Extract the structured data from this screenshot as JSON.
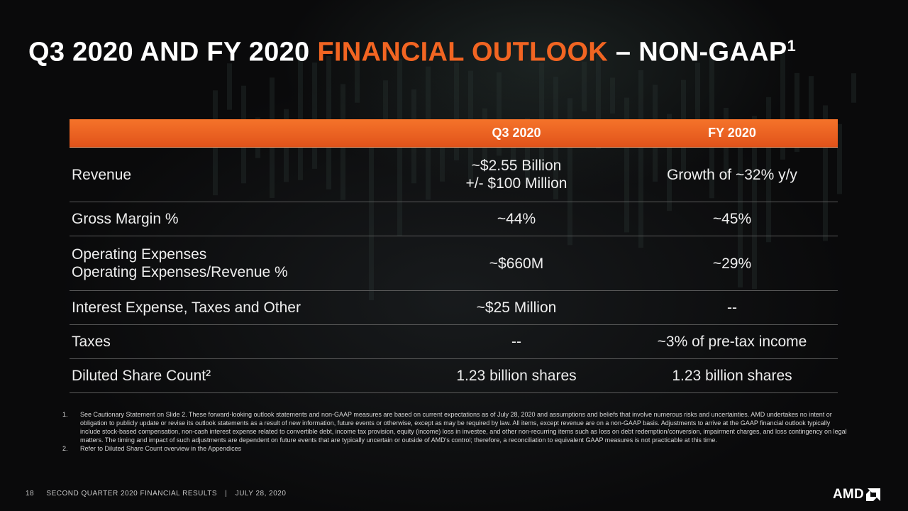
{
  "title": {
    "part1": "Q3 2020 AND FY 2020 ",
    "accent": "FINANCIAL OUTLOOK",
    "part2": " – NON-GAAP",
    "sup": "1"
  },
  "colors": {
    "accent": "#f26522",
    "header_bg": "#e95c1e",
    "background": "#0e0e0f"
  },
  "table": {
    "headers": [
      "",
      "Q3 2020",
      "FY 2020"
    ],
    "rows": [
      {
        "label": [
          "Revenue"
        ],
        "q3": [
          "~$2.55 Billion",
          "+/- $100 Million"
        ],
        "fy": [
          "Growth of ~32% y/y"
        ]
      },
      {
        "label": [
          "Gross Margin %"
        ],
        "q3": [
          "~44%"
        ],
        "fy": [
          "~45%"
        ]
      },
      {
        "label": [
          "Operating Expenses",
          "Operating Expenses/Revenue %"
        ],
        "q3": [
          "~$660M"
        ],
        "fy": [
          "~29%"
        ]
      },
      {
        "label": [
          "Interest Expense, Taxes and Other"
        ],
        "q3": [
          "~$25 Million"
        ],
        "fy": [
          "--"
        ]
      },
      {
        "label": [
          "Taxes"
        ],
        "q3": [
          "--"
        ],
        "fy": [
          "~3% of pre-tax income"
        ]
      },
      {
        "label": [
          "Diluted Share Count²"
        ],
        "q3": [
          "1.23 billion shares"
        ],
        "fy": [
          "1.23 billion shares"
        ]
      }
    ]
  },
  "footnotes": [
    {
      "num": "1.",
      "text": "See Cautionary Statement on Slide 2. These forward-looking outlook statements and non-GAAP measures are based on current expectations as of July 28, 2020 and assumptions and beliefs that involve numerous risks and uncertainties. AMD undertakes no intent or obligation to publicly update or revise its outlook statements as a result of new information, future events or otherwise, except as may be required by law. All items, except revenue are on a non-GAAP basis. Adjustments to arrive at the GAAP financial outlook typically include stock-based compensation, non-cash interest expense related to convertible debt, income tax provision, equity (income) loss in investee, and other non-recurring items such as loss on debt redemption/conversion, impairment charges, and loss contingency on legal matters. The timing and impact of such adjustments are dependent on future events that are typically uncertain or outside of AMD's control; therefore, a reconciliation to equivalent GAAP measures is not practicable at this time."
    },
    {
      "num": "2.",
      "text": "Refer to Diluted Share Count overview in the Appendices"
    }
  ],
  "footer": {
    "page": "18",
    "title": "SECOND QUARTER 2020 FINANCIAL RESULTS",
    "separator": "|",
    "date": "JULY 28, 2020"
  },
  "logo": {
    "text": "AMD",
    "icon": "amd-arrow-icon"
  }
}
